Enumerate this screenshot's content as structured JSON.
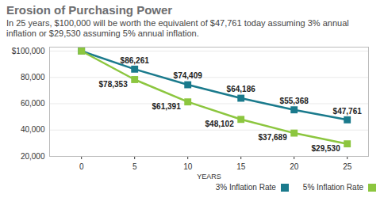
{
  "chart_data": {
    "type": "line",
    "title": "Erosion of Purchasing Power",
    "subtitle": "In 25 years, $100,000 will be worth the equivalent of $47,761 today assuming 3% annual inflation or $29,530 assuming 5% annual inflation.",
    "x_label": "YEARS",
    "x": [
      0,
      5,
      10,
      15,
      20,
      25
    ],
    "series": [
      {
        "name": "3% Inflation Rate",
        "color": "#1a7a8c",
        "marker": "square",
        "values": [
          100000,
          86261,
          74409,
          64186,
          55368,
          47761
        ],
        "value_labels": [
          null,
          "$86,261",
          "$74,409",
          "$64,186",
          "$55,368",
          "$47,761"
        ]
      },
      {
        "name": "5% Inflation Rate",
        "color": "#8cc63f",
        "marker": "square",
        "values": [
          100000,
          78353,
          61391,
          48102,
          37689,
          29530
        ],
        "value_labels": [
          null,
          "$78,353",
          "$61,391",
          "$48,102",
          "$37,689",
          "$29,530"
        ]
      }
    ],
    "xlim": [
      -3,
      27
    ],
    "xticks": [
      0,
      5,
      10,
      15,
      20,
      25
    ],
    "ylim": [
      20000,
      103000
    ],
    "yticks": [
      {
        "value": 20000,
        "label": "20,000"
      },
      {
        "value": 40000,
        "label": "40,000"
      },
      {
        "value": 60000,
        "label": "60,000"
      },
      {
        "value": 80000,
        "label": "80,000"
      },
      {
        "value": 100000,
        "label": "$100,000"
      }
    ],
    "grid": true,
    "data_labels": true,
    "legend": "bottom-right"
  }
}
